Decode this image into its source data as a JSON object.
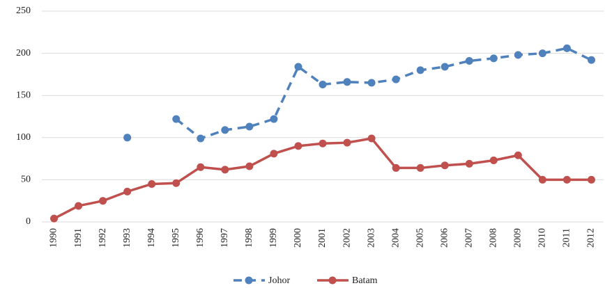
{
  "chart_data": {
    "type": "line",
    "categories": [
      "1990",
      "1991",
      "1992",
      "1993",
      "1994",
      "1995",
      "1996",
      "1997",
      "1998",
      "1999",
      "2000",
      "2001",
      "2002",
      "2003",
      "2004",
      "2005",
      "2006",
      "2007",
      "2008",
      "2009",
      "2010",
      "2011",
      "2012"
    ],
    "series": [
      {
        "name": "Johor",
        "color": "#4f81bd",
        "dashed": true,
        "values": [
          null,
          null,
          null,
          100,
          null,
          122,
          99,
          109,
          113,
          122,
          184,
          163,
          166,
          165,
          169,
          180,
          184,
          191,
          194,
          198,
          200,
          206,
          192
        ]
      },
      {
        "name": "Batam",
        "color": "#c0504d",
        "dashed": false,
        "values": [
          4,
          19,
          25,
          36,
          45,
          46,
          65,
          62,
          66,
          81,
          90,
          93,
          94,
          99,
          64,
          64,
          67,
          69,
          73,
          79,
          50,
          50,
          50
        ]
      }
    ],
    "ylim": [
      0,
      250
    ],
    "yticks": [
      0,
      50,
      100,
      150,
      200,
      250
    ],
    "grid": true,
    "legend": "bottom"
  }
}
